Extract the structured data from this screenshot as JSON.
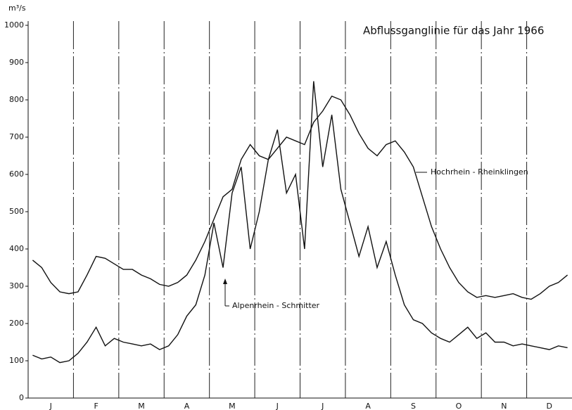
{
  "chart_data": {
    "type": "line",
    "title": "Abflussganglinie für das Jahr 1966",
    "y_label": "m³/s",
    "categories": [
      null,
      null,
      "J",
      null,
      null,
      null,
      null,
      "F",
      null,
      null,
      null,
      null,
      "M",
      null,
      null,
      null,
      null,
      "A",
      null,
      null,
      null,
      null,
      "M",
      null,
      null,
      null,
      null,
      "J",
      null,
      null,
      null,
      null,
      "J",
      null,
      null,
      null,
      null,
      "A",
      null,
      null,
      null,
      null,
      "S",
      null,
      null,
      null,
      null,
      "O",
      null,
      null,
      null,
      null,
      "N",
      null,
      null,
      null,
      null,
      "D",
      null,
      null
    ],
    "series": [
      {
        "name": "Hochrhein - Rheinklingen",
        "color": "#111111",
        "values": [
          370,
          350,
          310,
          285,
          280,
          285,
          330,
          380,
          375,
          360,
          345,
          345,
          330,
          320,
          305,
          300,
          310,
          330,
          370,
          420,
          480,
          540,
          560,
          640,
          680,
          650,
          640,
          670,
          700,
          690,
          680,
          740,
          770,
          810,
          800,
          760,
          710,
          670,
          650,
          680,
          690,
          660,
          620,
          540,
          460,
          400,
          350,
          310,
          285,
          270,
          275,
          270,
          275,
          280,
          270,
          265,
          280,
          300,
          310,
          330
        ]
      },
      {
        "name": "Alpenrhein - Schmitter",
        "color": "#111111",
        "values": [
          115,
          105,
          110,
          95,
          100,
          120,
          150,
          190,
          140,
          160,
          150,
          145,
          140,
          145,
          130,
          140,
          170,
          220,
          250,
          330,
          470,
          350,
          550,
          620,
          400,
          500,
          640,
          720,
          550,
          600,
          400,
          850,
          620,
          760,
          560,
          470,
          380,
          460,
          350,
          420,
          330,
          250,
          210,
          200,
          175,
          160,
          150,
          170,
          190,
          160,
          175,
          150,
          150,
          140,
          145,
          140,
          135,
          130,
          140,
          135
        ]
      }
    ],
    "ylim": [
      0,
      1000
    ],
    "yticks": [
      0,
      100,
      200,
      300,
      400,
      500,
      600,
      700,
      800,
      900,
      1000
    ],
    "grid": false
  }
}
